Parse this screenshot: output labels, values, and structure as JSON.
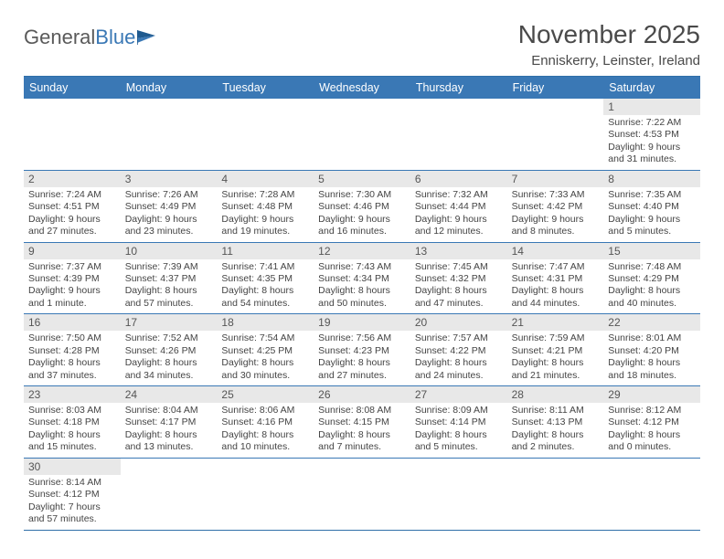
{
  "logo": {
    "part1": "General",
    "part2": "Blue"
  },
  "title": "November 2025",
  "location": "Enniskerry, Leinster, Ireland",
  "colors": {
    "header_bg": "#3a78b5",
    "header_border": "#2f6fa8",
    "date_bg": "#e8e8e8",
    "text": "#444444",
    "title_text": "#4a4a4a"
  },
  "day_names": [
    "Sunday",
    "Monday",
    "Tuesday",
    "Wednesday",
    "Thursday",
    "Friday",
    "Saturday"
  ],
  "weeks": [
    [
      {
        "blank": true
      },
      {
        "blank": true
      },
      {
        "blank": true
      },
      {
        "blank": true
      },
      {
        "blank": true
      },
      {
        "blank": true
      },
      {
        "date": "1",
        "sunrise": "7:22 AM",
        "sunset": "4:53 PM",
        "daylight": "9 hours and 31 minutes."
      }
    ],
    [
      {
        "date": "2",
        "sunrise": "7:24 AM",
        "sunset": "4:51 PM",
        "daylight": "9 hours and 27 minutes."
      },
      {
        "date": "3",
        "sunrise": "7:26 AM",
        "sunset": "4:49 PM",
        "daylight": "9 hours and 23 minutes."
      },
      {
        "date": "4",
        "sunrise": "7:28 AM",
        "sunset": "4:48 PM",
        "daylight": "9 hours and 19 minutes."
      },
      {
        "date": "5",
        "sunrise": "7:30 AM",
        "sunset": "4:46 PM",
        "daylight": "9 hours and 16 minutes."
      },
      {
        "date": "6",
        "sunrise": "7:32 AM",
        "sunset": "4:44 PM",
        "daylight": "9 hours and 12 minutes."
      },
      {
        "date": "7",
        "sunrise": "7:33 AM",
        "sunset": "4:42 PM",
        "daylight": "9 hours and 8 minutes."
      },
      {
        "date": "8",
        "sunrise": "7:35 AM",
        "sunset": "4:40 PM",
        "daylight": "9 hours and 5 minutes."
      }
    ],
    [
      {
        "date": "9",
        "sunrise": "7:37 AM",
        "sunset": "4:39 PM",
        "daylight": "9 hours and 1 minute."
      },
      {
        "date": "10",
        "sunrise": "7:39 AM",
        "sunset": "4:37 PM",
        "daylight": "8 hours and 57 minutes."
      },
      {
        "date": "11",
        "sunrise": "7:41 AM",
        "sunset": "4:35 PM",
        "daylight": "8 hours and 54 minutes."
      },
      {
        "date": "12",
        "sunrise": "7:43 AM",
        "sunset": "4:34 PM",
        "daylight": "8 hours and 50 minutes."
      },
      {
        "date": "13",
        "sunrise": "7:45 AM",
        "sunset": "4:32 PM",
        "daylight": "8 hours and 47 minutes."
      },
      {
        "date": "14",
        "sunrise": "7:47 AM",
        "sunset": "4:31 PM",
        "daylight": "8 hours and 44 minutes."
      },
      {
        "date": "15",
        "sunrise": "7:48 AM",
        "sunset": "4:29 PM",
        "daylight": "8 hours and 40 minutes."
      }
    ],
    [
      {
        "date": "16",
        "sunrise": "7:50 AM",
        "sunset": "4:28 PM",
        "daylight": "8 hours and 37 minutes."
      },
      {
        "date": "17",
        "sunrise": "7:52 AM",
        "sunset": "4:26 PM",
        "daylight": "8 hours and 34 minutes."
      },
      {
        "date": "18",
        "sunrise": "7:54 AM",
        "sunset": "4:25 PM",
        "daylight": "8 hours and 30 minutes."
      },
      {
        "date": "19",
        "sunrise": "7:56 AM",
        "sunset": "4:23 PM",
        "daylight": "8 hours and 27 minutes."
      },
      {
        "date": "20",
        "sunrise": "7:57 AM",
        "sunset": "4:22 PM",
        "daylight": "8 hours and 24 minutes."
      },
      {
        "date": "21",
        "sunrise": "7:59 AM",
        "sunset": "4:21 PM",
        "daylight": "8 hours and 21 minutes."
      },
      {
        "date": "22",
        "sunrise": "8:01 AM",
        "sunset": "4:20 PM",
        "daylight": "8 hours and 18 minutes."
      }
    ],
    [
      {
        "date": "23",
        "sunrise": "8:03 AM",
        "sunset": "4:18 PM",
        "daylight": "8 hours and 15 minutes."
      },
      {
        "date": "24",
        "sunrise": "8:04 AM",
        "sunset": "4:17 PM",
        "daylight": "8 hours and 13 minutes."
      },
      {
        "date": "25",
        "sunrise": "8:06 AM",
        "sunset": "4:16 PM",
        "daylight": "8 hours and 10 minutes."
      },
      {
        "date": "26",
        "sunrise": "8:08 AM",
        "sunset": "4:15 PM",
        "daylight": "8 hours and 7 minutes."
      },
      {
        "date": "27",
        "sunrise": "8:09 AM",
        "sunset": "4:14 PM",
        "daylight": "8 hours and 5 minutes."
      },
      {
        "date": "28",
        "sunrise": "8:11 AM",
        "sunset": "4:13 PM",
        "daylight": "8 hours and 2 minutes."
      },
      {
        "date": "29",
        "sunrise": "8:12 AM",
        "sunset": "4:12 PM",
        "daylight": "8 hours and 0 minutes."
      }
    ],
    [
      {
        "date": "30",
        "sunrise": "8:14 AM",
        "sunset": "4:12 PM",
        "daylight": "7 hours and 57 minutes."
      },
      {
        "blank": true
      },
      {
        "blank": true
      },
      {
        "blank": true
      },
      {
        "blank": true
      },
      {
        "blank": true
      },
      {
        "blank": true
      }
    ]
  ]
}
